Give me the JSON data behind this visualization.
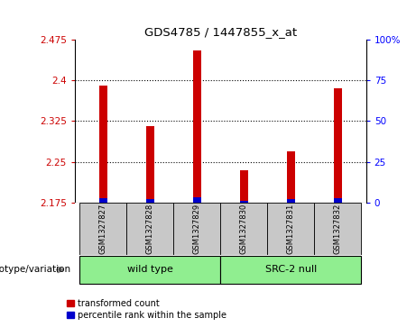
{
  "title": "GDS4785 / 1447855_x_at",
  "samples": [
    "GSM1327827",
    "GSM1327828",
    "GSM1327829",
    "GSM1327830",
    "GSM1327831",
    "GSM1327832"
  ],
  "red_values": [
    2.39,
    2.315,
    2.455,
    2.235,
    2.27,
    2.385
  ],
  "blue_percentiles": [
    3.0,
    2.5,
    3.5,
    1.0,
    2.0,
    3.0
  ],
  "ylim_left": [
    2.175,
    2.475
  ],
  "ylim_right": [
    0,
    100
  ],
  "yticks_left": [
    2.175,
    2.25,
    2.325,
    2.4,
    2.475
  ],
  "yticks_right": [
    0,
    25,
    50,
    75,
    100
  ],
  "ytick_labels_right": [
    "0",
    "25",
    "50",
    "75",
    "100%"
  ],
  "group_bg_color": "#c8c8c8",
  "bar_width": 0.18,
  "red_color": "#cc0000",
  "blue_color": "#0000cc",
  "legend_red": "transformed count",
  "legend_blue": "percentile rank within the sample",
  "genotype_label": "genotype/variation",
  "base_value": 2.175,
  "grid_lines": [
    2.25,
    2.325,
    2.4
  ],
  "wt_color": "#90ee90",
  "src_color": "#90ee90"
}
